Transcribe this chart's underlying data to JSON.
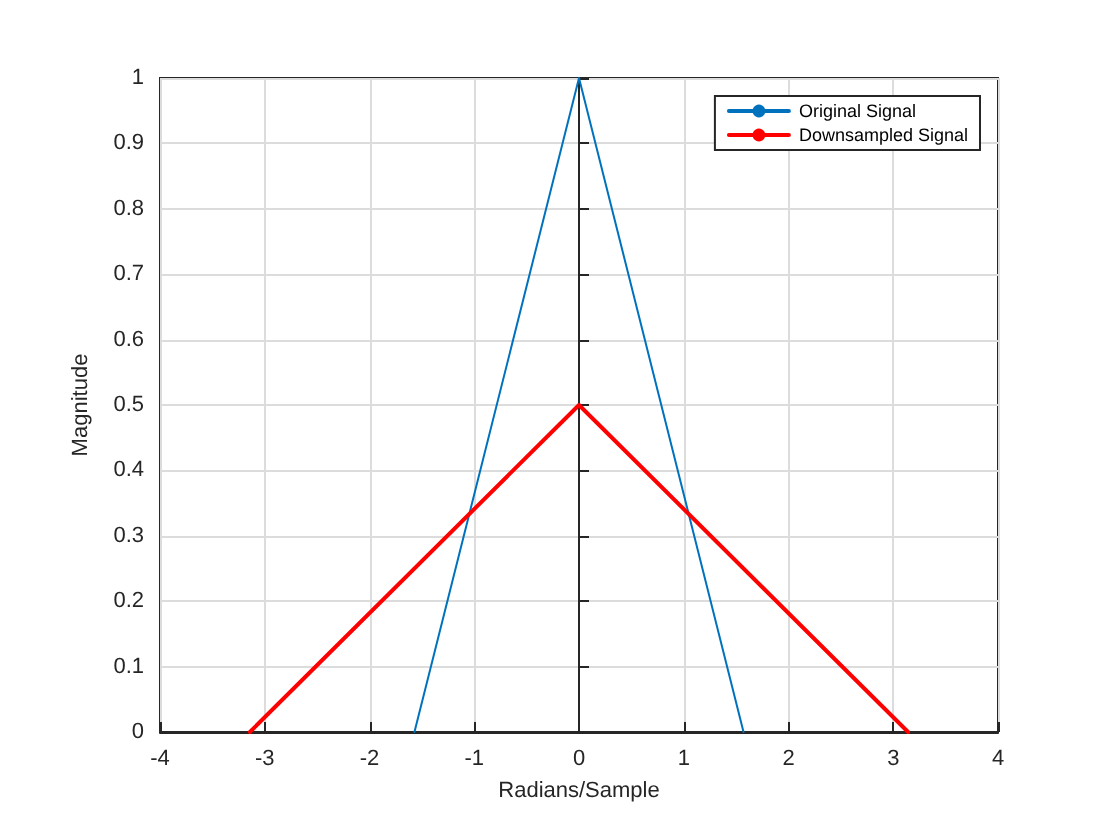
{
  "chart_data": {
    "type": "line",
    "xlabel": "Radians/Sample",
    "ylabel": "Magnitude",
    "series": [
      {
        "name": "Original Signal",
        "color": "#0072bd",
        "x": [
          -1.5708,
          0,
          1.5708
        ],
        "values": [
          0,
          1,
          0
        ]
      },
      {
        "name": "Downsampled Signal",
        "color": "#ff0000",
        "x": [
          -3.1416,
          0,
          3.1416
        ],
        "values": [
          0,
          0.5,
          0
        ]
      }
    ],
    "xlim": [
      -4,
      4
    ],
    "xticks": [
      -4,
      -3,
      -2,
      -1,
      0,
      1,
      2,
      3,
      4
    ],
    "ylim": [
      0,
      1
    ],
    "yticks": [
      0,
      0.1,
      0.2,
      0.3,
      0.4,
      0.5,
      0.6,
      0.7,
      0.8,
      0.9,
      1
    ],
    "grid": true,
    "legend": "top right",
    "marker": "none",
    "line_style": "solid"
  }
}
